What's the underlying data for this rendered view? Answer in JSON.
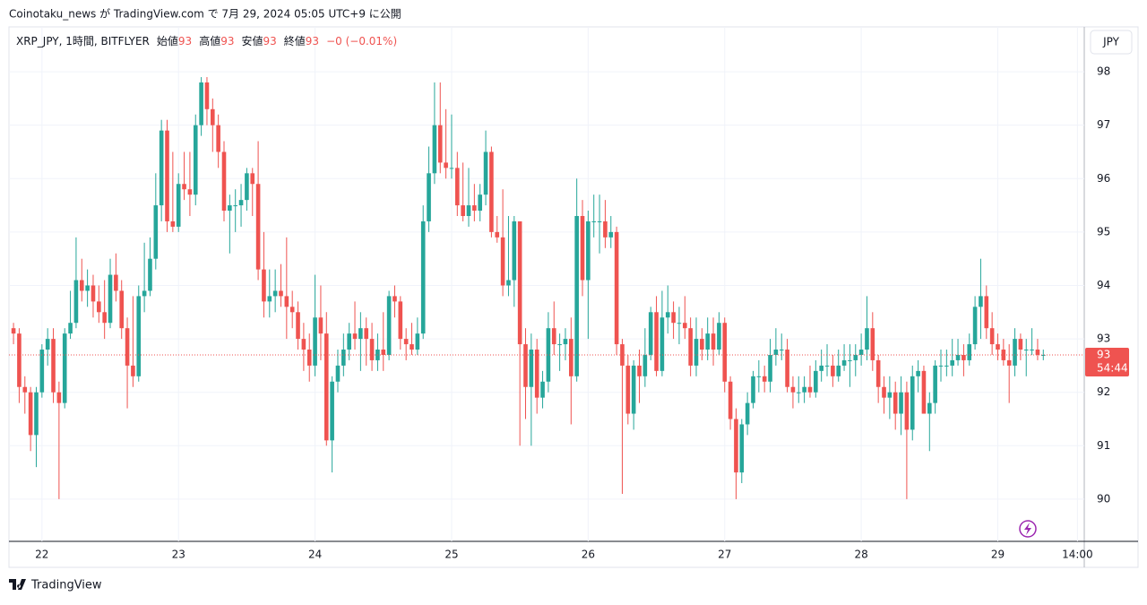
{
  "header": "Coinotaku_news が TradingView.com で 7月 29, 2024 05:05 UTC+9 に公開",
  "footer": "TradingView",
  "chart_data": {
    "type": "candlestick",
    "symbol": "XRP_JPY, 1時間, BITFLYER",
    "legend": [
      {
        "name": "始値",
        "value": "93"
      },
      {
        "name": "高値",
        "value": "93"
      },
      {
        "name": "安値",
        "value": "93"
      },
      {
        "name": "終値",
        "value": "93"
      }
    ],
    "change": "−0 (−0.01%)",
    "currency": "JPY",
    "up_color": "#26a69a",
    "down_color": "#ef5350",
    "price_line": {
      "value": 92.7,
      "label": "93",
      "countdown": "54:44"
    },
    "xlim": [
      -0.8,
      188.2
    ],
    "xticks": [
      {
        "value": 5,
        "label": "22"
      },
      {
        "value": 29,
        "label": "23"
      },
      {
        "value": 53,
        "label": "24"
      },
      {
        "value": 77,
        "label": "25"
      },
      {
        "value": 101,
        "label": "26"
      },
      {
        "value": 125,
        "label": "27"
      },
      {
        "value": 149,
        "label": "28"
      },
      {
        "value": 173,
        "label": "29"
      },
      {
        "value": 187,
        "label": "14:00"
      }
    ],
    "ylim": [
      89.21,
      98.84
    ],
    "yticks": [
      90,
      91,
      92,
      93,
      94,
      95,
      96,
      97,
      98
    ],
    "grid": true,
    "ohlc": [
      [
        93.2,
        93.3,
        92.9,
        93.1
      ],
      [
        93.1,
        93.2,
        91.8,
        92.1
      ],
      [
        92.1,
        92.3,
        91.6,
        92.0
      ],
      [
        92.0,
        92.1,
        90.9,
        91.2
      ],
      [
        91.2,
        92.1,
        90.6,
        92.0
      ],
      [
        92.0,
        92.9,
        91.9,
        92.8
      ],
      [
        92.8,
        93.2,
        92.5,
        93.0
      ],
      [
        93.0,
        93.2,
        91.8,
        92.0
      ],
      [
        92.0,
        92.2,
        90.0,
        91.8
      ],
      [
        91.8,
        93.2,
        91.7,
        93.1
      ],
      [
        93.1,
        93.9,
        93.0,
        93.3
      ],
      [
        93.3,
        94.9,
        93.2,
        94.1
      ],
      [
        94.1,
        94.5,
        93.7,
        93.9
      ],
      [
        93.9,
        94.3,
        93.6,
        94.0
      ],
      [
        94.0,
        94.2,
        93.4,
        93.7
      ],
      [
        93.7,
        94.0,
        93.3,
        93.5
      ],
      [
        93.5,
        94.1,
        93.0,
        93.3
      ],
      [
        93.3,
        94.5,
        93.2,
        94.2
      ],
      [
        94.2,
        94.6,
        93.7,
        93.9
      ],
      [
        93.9,
        94.1,
        93.0,
        93.2
      ],
      [
        93.2,
        93.4,
        91.7,
        92.5
      ],
      [
        92.5,
        93.8,
        92.1,
        92.3
      ],
      [
        92.3,
        94.0,
        92.2,
        93.8
      ],
      [
        93.8,
        94.8,
        93.5,
        93.9
      ],
      [
        93.9,
        94.9,
        93.8,
        94.5
      ],
      [
        94.5,
        96.1,
        94.3,
        95.5
      ],
      [
        95.5,
        97.1,
        95.2,
        96.9
      ],
      [
        96.9,
        97.1,
        95.0,
        95.2
      ],
      [
        95.2,
        96.5,
        95.0,
        95.1
      ],
      [
        95.1,
        96.1,
        95.0,
        95.9
      ],
      [
        95.9,
        96.5,
        95.6,
        95.8
      ],
      [
        95.8,
        96.5,
        95.3,
        95.7
      ],
      [
        95.7,
        97.2,
        95.5,
        97.0
      ],
      [
        97.0,
        97.9,
        96.8,
        97.8
      ],
      [
        97.8,
        97.9,
        97.0,
        97.3
      ],
      [
        97.3,
        97.5,
        96.5,
        97.0
      ],
      [
        97.0,
        97.2,
        96.2,
        96.5
      ],
      [
        96.5,
        96.7,
        95.2,
        95.4
      ],
      [
        95.4,
        95.7,
        94.6,
        95.5
      ],
      [
        95.5,
        95.8,
        95.0,
        95.5
      ],
      [
        95.5,
        95.9,
        95.1,
        95.6
      ],
      [
        95.6,
        96.2,
        95.4,
        96.1
      ],
      [
        96.1,
        96.2,
        95.3,
        95.9
      ],
      [
        95.9,
        96.7,
        94.1,
        94.3
      ],
      [
        94.3,
        95.0,
        93.4,
        93.7
      ],
      [
        93.7,
        94.3,
        93.4,
        93.8
      ],
      [
        93.8,
        94.3,
        93.5,
        93.9
      ],
      [
        93.9,
        94.4,
        93.6,
        93.8
      ],
      [
        93.8,
        94.9,
        93.0,
        93.6
      ],
      [
        93.6,
        93.9,
        93.2,
        93.5
      ],
      [
        93.5,
        93.7,
        92.8,
        93.0
      ],
      [
        93.0,
        93.3,
        92.4,
        92.8
      ],
      [
        92.8,
        93.1,
        92.2,
        92.5
      ],
      [
        92.5,
        94.2,
        92.3,
        93.4
      ],
      [
        93.4,
        94.0,
        92.6,
        93.1
      ],
      [
        93.1,
        93.5,
        91.0,
        91.1
      ],
      [
        91.1,
        92.3,
        90.5,
        92.2
      ],
      [
        92.2,
        92.8,
        92.0,
        92.5
      ],
      [
        92.5,
        93.1,
        92.3,
        92.8
      ],
      [
        92.8,
        93.3,
        92.6,
        93.1
      ],
      [
        93.1,
        93.7,
        92.8,
        93.0
      ],
      [
        93.0,
        93.5,
        92.4,
        93.2
      ],
      [
        93.2,
        93.4,
        92.5,
        93.0
      ],
      [
        93.0,
        93.3,
        92.4,
        92.6
      ],
      [
        92.6,
        93.1,
        92.4,
        92.8
      ],
      [
        92.8,
        93.5,
        92.4,
        92.7
      ],
      [
        92.7,
        93.9,
        92.6,
        93.8
      ],
      [
        93.8,
        94.0,
        93.4,
        93.7
      ],
      [
        93.7,
        93.8,
        92.8,
        93.0
      ],
      [
        93.0,
        93.2,
        92.6,
        92.9
      ],
      [
        92.9,
        93.3,
        92.7,
        92.8
      ],
      [
        92.8,
        93.4,
        92.7,
        93.1
      ],
      [
        93.1,
        95.5,
        93.0,
        95.2
      ],
      [
        95.2,
        96.6,
        95.0,
        96.1
      ],
      [
        96.1,
        97.8,
        95.9,
        97.0
      ],
      [
        97.0,
        97.8,
        96.1,
        96.3
      ],
      [
        96.3,
        97.3,
        96.0,
        96.2
      ],
      [
        96.2,
        97.2,
        96.0,
        96.2
      ],
      [
        96.2,
        96.5,
        95.3,
        95.5
      ],
      [
        95.5,
        96.3,
        95.2,
        95.3
      ],
      [
        95.3,
        96.2,
        95.1,
        95.5
      ],
      [
        95.5,
        95.9,
        95.2,
        95.4
      ],
      [
        95.4,
        95.9,
        95.2,
        95.7
      ],
      [
        95.7,
        96.9,
        95.5,
        96.5
      ],
      [
        96.5,
        96.6,
        94.9,
        95.0
      ],
      [
        95.0,
        95.3,
        94.8,
        94.9
      ],
      [
        94.9,
        95.8,
        93.8,
        94.0
      ],
      [
        94.0,
        95.3,
        93.8,
        94.1
      ],
      [
        94.1,
        95.3,
        93.6,
        95.2
      ],
      [
        95.2,
        95.2,
        91.0,
        92.9
      ],
      [
        92.9,
        93.2,
        91.5,
        92.1
      ],
      [
        92.1,
        93.1,
        91.0,
        92.8
      ],
      [
        92.8,
        93.0,
        91.6,
        91.9
      ],
      [
        91.9,
        92.4,
        91.7,
        92.2
      ],
      [
        92.2,
        93.5,
        92.0,
        93.2
      ],
      [
        93.2,
        93.7,
        92.7,
        92.9
      ],
      [
        92.9,
        93.1,
        92.4,
        92.9
      ],
      [
        92.9,
        93.2,
        92.6,
        93.0
      ],
      [
        93.0,
        93.4,
        91.4,
        92.3
      ],
      [
        92.3,
        96.0,
        92.2,
        95.3
      ],
      [
        95.3,
        95.6,
        93.8,
        94.1
      ],
      [
        94.1,
        95.4,
        93.0,
        95.2
      ],
      [
        95.2,
        95.7,
        94.9,
        95.2
      ],
      [
        95.2,
        95.7,
        94.6,
        95.2
      ],
      [
        95.2,
        95.6,
        94.7,
        94.9
      ],
      [
        94.9,
        95.3,
        94.7,
        95.0
      ],
      [
        95.0,
        95.1,
        92.7,
        92.9
      ],
      [
        92.9,
        93.0,
        90.1,
        92.5
      ],
      [
        92.5,
        92.7,
        91.4,
        91.6
      ],
      [
        91.6,
        92.6,
        91.3,
        92.5
      ],
      [
        92.5,
        92.8,
        91.8,
        92.3
      ],
      [
        92.3,
        93.2,
        92.1,
        92.7
      ],
      [
        92.7,
        93.6,
        92.6,
        93.5
      ],
      [
        93.5,
        93.8,
        92.3,
        92.4
      ],
      [
        92.4,
        93.9,
        92.3,
        93.4
      ],
      [
        93.4,
        94.0,
        93.1,
        93.5
      ],
      [
        93.5,
        93.7,
        93.0,
        93.3
      ],
      [
        93.3,
        93.6,
        92.9,
        93.3
      ],
      [
        93.3,
        93.8,
        93.0,
        93.2
      ],
      [
        93.2,
        93.4,
        92.3,
        92.5
      ],
      [
        92.5,
        93.4,
        92.3,
        93.0
      ],
      [
        93.0,
        93.2,
        92.6,
        92.8
      ],
      [
        92.8,
        93.4,
        92.6,
        93.1
      ],
      [
        93.1,
        93.4,
        92.5,
        92.8
      ],
      [
        92.8,
        93.5,
        92.7,
        93.3
      ],
      [
        93.3,
        93.4,
        92.0,
        92.2
      ],
      [
        92.2,
        92.3,
        91.3,
        91.5
      ],
      [
        91.5,
        91.7,
        90.0,
        90.5
      ],
      [
        90.5,
        91.5,
        90.3,
        91.4
      ],
      [
        91.4,
        92.0,
        91.2,
        91.8
      ],
      [
        91.8,
        92.4,
        91.7,
        92.3
      ],
      [
        92.3,
        92.6,
        92.0,
        92.3
      ],
      [
        92.3,
        92.5,
        92.0,
        92.2
      ],
      [
        92.2,
        93.0,
        92.0,
        92.7
      ],
      [
        92.7,
        93.2,
        92.5,
        92.8
      ],
      [
        92.8,
        93.1,
        92.6,
        92.8
      ],
      [
        92.8,
        93.0,
        92.0,
        92.1
      ],
      [
        92.1,
        92.3,
        91.7,
        92.0
      ],
      [
        92.0,
        92.3,
        91.8,
        92.0
      ],
      [
        92.0,
        92.3,
        91.8,
        92.1
      ],
      [
        92.1,
        92.5,
        91.9,
        92.0
      ],
      [
        92.0,
        92.6,
        91.9,
        92.4
      ],
      [
        92.4,
        92.8,
        92.2,
        92.5
      ],
      [
        92.5,
        92.9,
        92.3,
        92.5
      ],
      [
        92.5,
        92.7,
        92.1,
        92.3
      ],
      [
        92.3,
        92.8,
        92.2,
        92.5
      ],
      [
        92.5,
        92.9,
        92.4,
        92.6
      ],
      [
        92.6,
        92.9,
        92.1,
        92.6
      ],
      [
        92.6,
        92.9,
        92.3,
        92.7
      ],
      [
        92.7,
        93.1,
        92.5,
        92.8
      ],
      [
        92.8,
        93.8,
        92.6,
        93.2
      ],
      [
        93.2,
        93.5,
        92.4,
        92.6
      ],
      [
        92.6,
        92.7,
        91.8,
        92.1
      ],
      [
        92.1,
        92.3,
        91.6,
        91.9
      ],
      [
        91.9,
        92.3,
        91.5,
        92.0
      ],
      [
        92.0,
        92.2,
        91.3,
        91.6
      ],
      [
        91.6,
        92.3,
        91.2,
        92.0
      ],
      [
        92.0,
        92.2,
        90.0,
        91.3
      ],
      [
        91.3,
        92.5,
        91.1,
        92.3
      ],
      [
        92.3,
        92.6,
        92.0,
        92.4
      ],
      [
        92.4,
        92.5,
        91.6,
        91.6
      ],
      [
        91.6,
        92.0,
        90.9,
        91.8
      ],
      [
        91.8,
        92.6,
        91.6,
        92.5
      ],
      [
        92.5,
        92.8,
        92.2,
        92.5
      ],
      [
        92.5,
        92.8,
        92.3,
        92.5
      ],
      [
        92.5,
        93.0,
        92.3,
        92.6
      ],
      [
        92.6,
        93.0,
        92.5,
        92.7
      ],
      [
        92.7,
        92.9,
        92.3,
        92.6
      ],
      [
        92.6,
        93.1,
        92.5,
        92.9
      ],
      [
        92.9,
        93.8,
        92.8,
        93.6
      ],
      [
        93.6,
        94.5,
        93.0,
        93.8
      ],
      [
        93.8,
        94.0,
        93.0,
        93.2
      ],
      [
        93.2,
        93.5,
        92.7,
        92.9
      ],
      [
        92.9,
        93.1,
        92.6,
        92.8
      ],
      [
        92.8,
        93.0,
        92.5,
        92.6
      ],
      [
        92.6,
        92.9,
        91.8,
        92.5
      ],
      [
        92.5,
        93.2,
        92.3,
        93.0
      ],
      [
        93.0,
        93.1,
        92.6,
        92.8
      ],
      [
        92.8,
        93.0,
        92.3,
        92.8
      ],
      [
        92.8,
        93.2,
        92.7,
        92.8
      ],
      [
        92.8,
        93.0,
        92.6,
        92.7
      ],
      [
        92.7,
        92.8,
        92.6,
        92.7
      ]
    ]
  }
}
